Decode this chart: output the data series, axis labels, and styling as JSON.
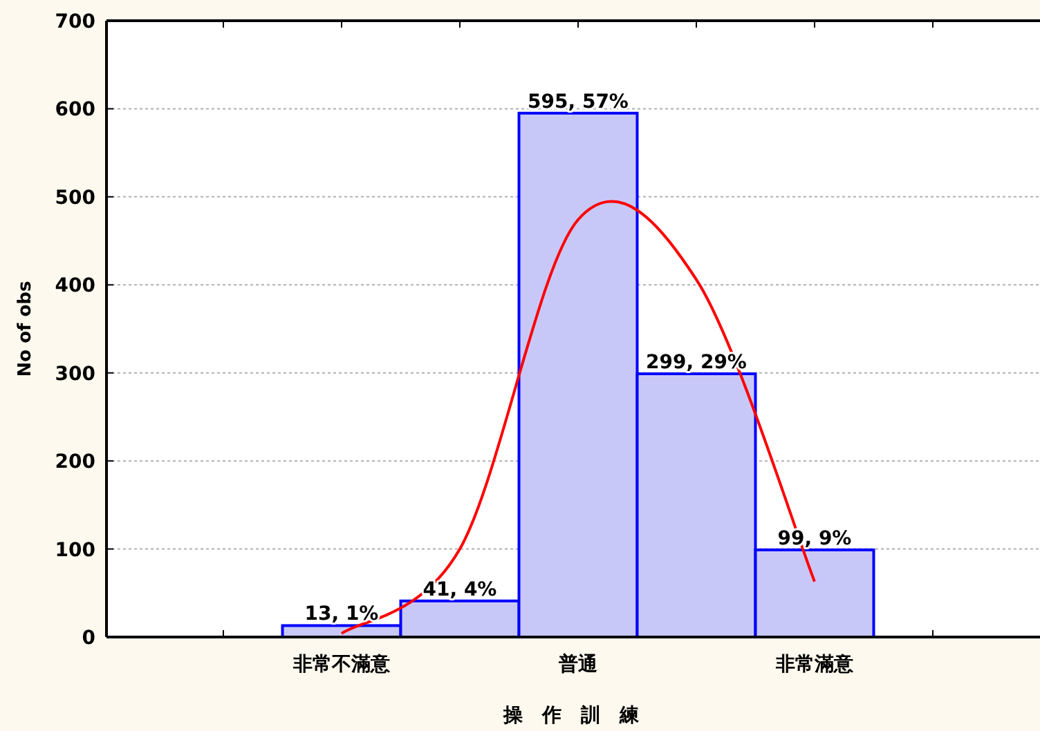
{
  "chart_data": {
    "type": "bar",
    "xlabel": "操作訓練",
    "ylabel": "No of obs",
    "categories": [
      "非常不滿意",
      null,
      "普通",
      null,
      "非常滿意"
    ],
    "series": [
      {
        "color": "#c8c8f8",
        "values": [
          13,
          41,
          595,
          299,
          99
        ],
        "value_labels": [
          "13, 1%",
          "41, 4%",
          "595, 57%",
          "299, 29%",
          "99, 9%"
        ]
      },
      {
        "type": "line",
        "color": "#ff0000",
        "values": [
          4,
          100,
          474,
          406,
          63
        ]
      }
    ],
    "ylim": [
      0,
      700
    ],
    "yticks": [
      0,
      100,
      200,
      300,
      400,
      500,
      600,
      700
    ],
    "grid": "y"
  }
}
